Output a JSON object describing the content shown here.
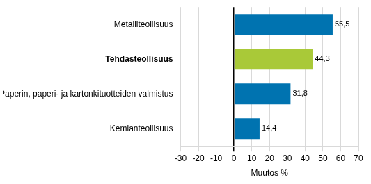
{
  "chart_data": {
    "type": "bar",
    "orientation": "horizontal",
    "categories": [
      "Metalliteollisuus",
      "Tehdasteollisuus",
      "Paperin, paperi- ja kartonkituotteiden valmistus",
      "Kemianteollisuus"
    ],
    "values": [
      55.5,
      44.3,
      31.8,
      14.4
    ],
    "value_labels": [
      "55,5",
      "44,3",
      "31,8",
      "14,4"
    ],
    "colors": [
      "#0073b0",
      "#a9c938",
      "#0073b0",
      "#0073b0"
    ],
    "x_label": "Muutos %",
    "xlim": [
      -30,
      70
    ],
    "xticks": [
      -30,
      -20,
      -10,
      0,
      10,
      20,
      30,
      40,
      50,
      60,
      70
    ],
    "grid": true,
    "data_labels": true
  }
}
